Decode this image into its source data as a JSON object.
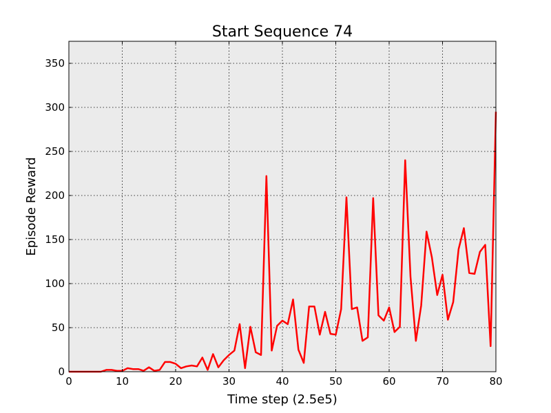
{
  "chart_data": {
    "type": "line",
    "title": "Start Sequence 74",
    "xlabel": "Time step (2.5e5)",
    "ylabel": "Episode Reward",
    "xlim": [
      0,
      80
    ],
    "ylim": [
      0,
      375
    ],
    "xticks": [
      0,
      10,
      20,
      30,
      40,
      50,
      60,
      70,
      80
    ],
    "yticks": [
      0,
      50,
      100,
      150,
      200,
      250,
      300,
      350
    ],
    "grid": true,
    "background_color": "#ebebeb",
    "series": [
      {
        "color": "#ff0000",
        "x": [
          0,
          1,
          2,
          3,
          4,
          5,
          6,
          7,
          8,
          9,
          10,
          11,
          12,
          13,
          14,
          15,
          16,
          17,
          18,
          19,
          20,
          21,
          22,
          23,
          24,
          25,
          26,
          27,
          28,
          29,
          30,
          31,
          32,
          33,
          34,
          35,
          36,
          37,
          38,
          39,
          40,
          41,
          42,
          43,
          44,
          45,
          46,
          47,
          48,
          49,
          50,
          51,
          52,
          53,
          54,
          55,
          56,
          57,
          58,
          59,
          60,
          61,
          62,
          63,
          64,
          65,
          66,
          67,
          68,
          69,
          70,
          71,
          72,
          73,
          74,
          75,
          76,
          77,
          78,
          79,
          80
        ],
        "y": [
          0,
          0,
          0,
          0,
          0,
          0,
          0,
          2,
          2,
          1,
          1,
          4,
          3,
          3,
          1,
          5,
          1,
          2,
          11,
          11,
          9,
          4,
          6,
          7,
          6,
          16,
          2,
          20,
          5,
          13,
          19,
          24,
          54,
          4,
          51,
          22,
          19,
          222,
          24,
          52,
          58,
          54,
          82,
          25,
          10,
          74,
          74,
          42,
          68,
          43,
          42,
          71,
          198,
          71,
          73,
          35,
          39,
          197,
          64,
          58,
          73,
          45,
          51,
          240,
          108,
          35,
          75,
          159,
          130,
          87,
          110,
          59,
          79,
          139,
          163,
          112,
          111,
          136,
          144,
          29,
          295
        ]
      }
    ]
  }
}
